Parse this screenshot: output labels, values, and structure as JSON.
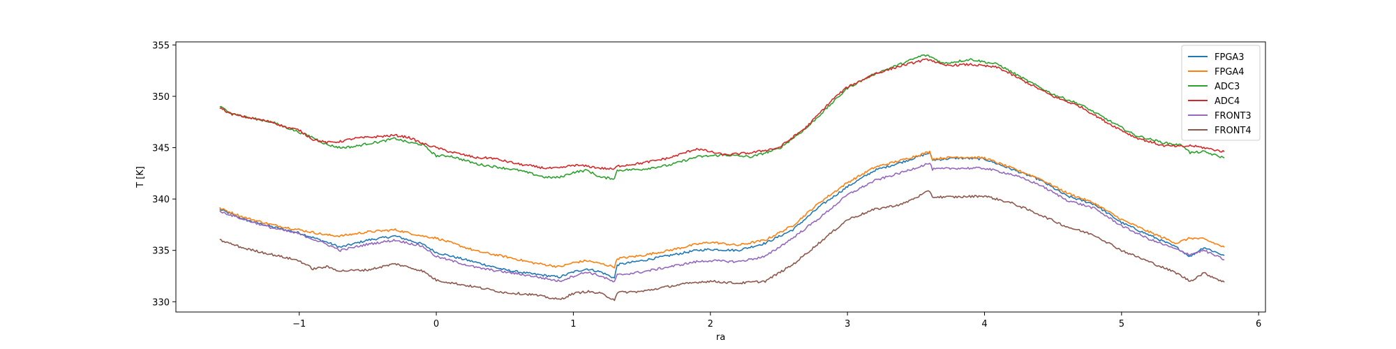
{
  "chart_data": {
    "type": "line",
    "title": "",
    "xlabel": "ra",
    "ylabel": "T [K]",
    "xlim": [
      -1.9,
      6.05
    ],
    "ylim": [
      329.0,
      355.3
    ],
    "x_ticks": [
      -1,
      0,
      1,
      2,
      3,
      4,
      5,
      6
    ],
    "x_tick_labels": [
      "−1",
      "0",
      "1",
      "2",
      "3",
      "4",
      "5",
      "6"
    ],
    "y_ticks": [
      330,
      335,
      340,
      345,
      350,
      355
    ],
    "y_tick_labels": [
      "330",
      "335",
      "340",
      "345",
      "350",
      "355"
    ],
    "legend_position": "top-right",
    "grid": false,
    "series": [
      {
        "name": "FPGA3",
        "color": "#1f77b4",
        "x": [
          -1.58,
          -1.4,
          -1.2,
          -1.0,
          -0.8,
          -0.7,
          -0.5,
          -0.3,
          -0.1,
          0.0,
          0.3,
          0.5,
          0.7,
          0.9,
          1.0,
          1.1,
          1.2,
          1.3,
          1.32,
          1.5,
          1.7,
          1.9,
          2.0,
          2.2,
          2.4,
          2.6,
          2.8,
          3.0,
          3.2,
          3.4,
          3.6,
          3.62,
          3.8,
          4.0,
          4.2,
          4.4,
          4.6,
          4.8,
          5.0,
          5.2,
          5.4,
          5.5,
          5.6,
          5.75
        ],
        "y": [
          339.0,
          338.0,
          337.3,
          336.7,
          335.8,
          335.3,
          336.0,
          336.4,
          335.6,
          334.8,
          333.8,
          333.1,
          332.7,
          332.4,
          332.9,
          333.2,
          332.9,
          332.3,
          333.6,
          334.0,
          334.5,
          335.0,
          335.1,
          335.0,
          335.7,
          337.0,
          339.3,
          341.2,
          342.8,
          343.6,
          344.5,
          343.8,
          344.0,
          343.9,
          342.9,
          341.9,
          340.3,
          339.5,
          337.7,
          336.5,
          335.3,
          334.4,
          335.3,
          334.5
        ]
      },
      {
        "name": "FPGA4",
        "color": "#ff7f0e",
        "x": [
          -1.58,
          -1.4,
          -1.2,
          -1.0,
          -0.8,
          -0.7,
          -0.5,
          -0.3,
          -0.1,
          0.0,
          0.3,
          0.5,
          0.7,
          0.9,
          1.0,
          1.1,
          1.2,
          1.3,
          1.32,
          1.5,
          1.7,
          1.9,
          2.0,
          2.2,
          2.4,
          2.6,
          2.8,
          3.0,
          3.2,
          3.4,
          3.6,
          3.62,
          3.8,
          4.0,
          4.2,
          4.4,
          4.6,
          4.8,
          5.0,
          5.2,
          5.4,
          5.5,
          5.6,
          5.75
        ],
        "y": [
          339.1,
          338.2,
          337.5,
          337.0,
          336.5,
          336.4,
          336.8,
          337.0,
          336.4,
          336.2,
          334.9,
          334.4,
          333.8,
          333.4,
          333.8,
          334.0,
          333.7,
          333.4,
          334.2,
          334.5,
          335.0,
          335.6,
          335.8,
          335.5,
          336.0,
          337.4,
          339.7,
          341.6,
          343.1,
          343.8,
          344.6,
          343.9,
          344.1,
          344.0,
          343.0,
          342.0,
          340.6,
          339.6,
          338.0,
          336.8,
          335.7,
          336.2,
          336.1,
          335.3
        ]
      },
      {
        "name": "ADC3",
        "color": "#2ca02c",
        "x": [
          -1.58,
          -1.5,
          -1.4,
          -1.2,
          -1.1,
          -1.0,
          -0.9,
          -0.8,
          -0.7,
          -0.6,
          -0.5,
          -0.4,
          -0.3,
          -0.2,
          -0.1,
          0.0,
          0.1,
          0.3,
          0.4,
          0.6,
          0.8,
          0.9,
          1.0,
          1.1,
          1.2,
          1.3,
          1.32,
          1.5,
          1.7,
          1.9,
          2.1,
          2.3,
          2.5,
          2.7,
          2.9,
          3.0,
          3.2,
          3.4,
          3.55,
          3.6,
          3.7,
          3.9,
          4.1,
          4.3,
          4.5,
          4.7,
          4.9,
          5.1,
          5.3,
          5.45,
          5.5,
          5.6,
          5.75
        ],
        "y": [
          349.0,
          348.4,
          348.0,
          347.5,
          347.0,
          346.5,
          346.0,
          345.3,
          345.0,
          345.1,
          345.4,
          345.6,
          345.9,
          345.5,
          345.3,
          344.2,
          344.2,
          343.4,
          343.2,
          342.8,
          342.1,
          342.1,
          342.6,
          342.8,
          342.1,
          342.0,
          342.8,
          342.9,
          343.3,
          344.1,
          344.3,
          344.1,
          344.9,
          346.9,
          349.5,
          350.8,
          352.2,
          353.2,
          354.0,
          353.9,
          353.2,
          353.6,
          353.1,
          351.6,
          350.2,
          349.2,
          347.7,
          346.2,
          345.5,
          345.2,
          344.5,
          344.6,
          344.0
        ]
      },
      {
        "name": "ADC4",
        "color": "#d62728",
        "x": [
          -1.58,
          -1.5,
          -1.4,
          -1.2,
          -1.1,
          -1.0,
          -0.9,
          -0.8,
          -0.7,
          -0.6,
          -0.5,
          -0.4,
          -0.3,
          -0.2,
          -0.1,
          0.0,
          0.1,
          0.3,
          0.4,
          0.6,
          0.8,
          0.9,
          1.0,
          1.1,
          1.2,
          1.3,
          1.32,
          1.5,
          1.7,
          1.9,
          2.1,
          2.3,
          2.5,
          2.7,
          2.9,
          3.0,
          3.2,
          3.4,
          3.55,
          3.6,
          3.7,
          3.9,
          4.1,
          4.3,
          4.5,
          4.7,
          4.9,
          5.1,
          5.3,
          5.45,
          5.5,
          5.6,
          5.75
        ],
        "y": [
          348.9,
          348.3,
          348.0,
          347.5,
          347.0,
          346.7,
          345.8,
          345.5,
          345.6,
          345.9,
          346.0,
          346.1,
          346.2,
          346.0,
          345.4,
          345.0,
          344.6,
          344.0,
          344.0,
          343.4,
          343.0,
          343.0,
          343.3,
          343.2,
          343.0,
          342.9,
          343.2,
          343.5,
          344.0,
          344.9,
          344.3,
          344.5,
          345.0,
          347.0,
          349.8,
          350.9,
          352.2,
          353.0,
          353.5,
          353.6,
          353.0,
          353.1,
          352.8,
          351.4,
          350.0,
          349.0,
          347.4,
          346.0,
          345.2,
          345.1,
          345.2,
          345.0,
          344.6
        ]
      },
      {
        "name": "FRONT3",
        "color": "#9467bd",
        "x": [
          -1.58,
          -1.4,
          -1.2,
          -1.0,
          -0.8,
          -0.7,
          -0.5,
          -0.3,
          -0.1,
          0.0,
          0.3,
          0.5,
          0.7,
          0.9,
          1.0,
          1.1,
          1.2,
          1.3,
          1.32,
          1.5,
          1.7,
          1.9,
          2.0,
          2.2,
          2.4,
          2.6,
          2.8,
          3.0,
          3.2,
          3.4,
          3.6,
          3.62,
          3.8,
          4.0,
          4.2,
          4.4,
          4.6,
          4.8,
          5.0,
          5.2,
          5.4,
          5.5,
          5.6,
          5.75
        ],
        "y": [
          338.8,
          338.0,
          337.2,
          336.6,
          335.6,
          335.0,
          335.6,
          336.0,
          335.4,
          334.4,
          333.3,
          332.9,
          332.5,
          332.0,
          332.5,
          332.9,
          332.5,
          331.9,
          332.6,
          332.9,
          333.4,
          333.9,
          334.0,
          333.9,
          334.4,
          336.2,
          338.2,
          340.4,
          341.8,
          342.6,
          343.5,
          342.9,
          343.0,
          343.0,
          342.4,
          341.4,
          339.9,
          339.1,
          337.4,
          336.1,
          335.1,
          334.6,
          335.0,
          334.1
        ]
      },
      {
        "name": "FRONT4",
        "color": "#8c564b",
        "x": [
          -1.58,
          -1.4,
          -1.2,
          -1.0,
          -0.9,
          -0.8,
          -0.7,
          -0.5,
          -0.3,
          -0.1,
          0.0,
          0.3,
          0.5,
          0.7,
          0.9,
          1.0,
          1.1,
          1.2,
          1.3,
          1.32,
          1.5,
          1.7,
          1.9,
          2.0,
          2.2,
          2.4,
          2.6,
          2.8,
          3.0,
          3.2,
          3.4,
          3.6,
          3.62,
          3.8,
          4.0,
          4.2,
          4.4,
          4.6,
          4.8,
          5.0,
          5.2,
          5.4,
          5.5,
          5.6,
          5.75
        ],
        "y": [
          336.0,
          335.2,
          334.6,
          334.0,
          333.2,
          333.4,
          333.0,
          333.1,
          333.7,
          333.0,
          332.1,
          331.4,
          330.9,
          330.7,
          330.2,
          330.8,
          331.0,
          330.8,
          330.2,
          330.9,
          331.0,
          331.5,
          331.9,
          332.0,
          331.8,
          332.0,
          333.6,
          335.8,
          338.0,
          339.0,
          339.5,
          340.8,
          340.2,
          340.2,
          340.3,
          339.6,
          338.5,
          337.3,
          336.5,
          335.0,
          333.9,
          332.8,
          332.0,
          332.8,
          331.9
        ]
      }
    ]
  }
}
